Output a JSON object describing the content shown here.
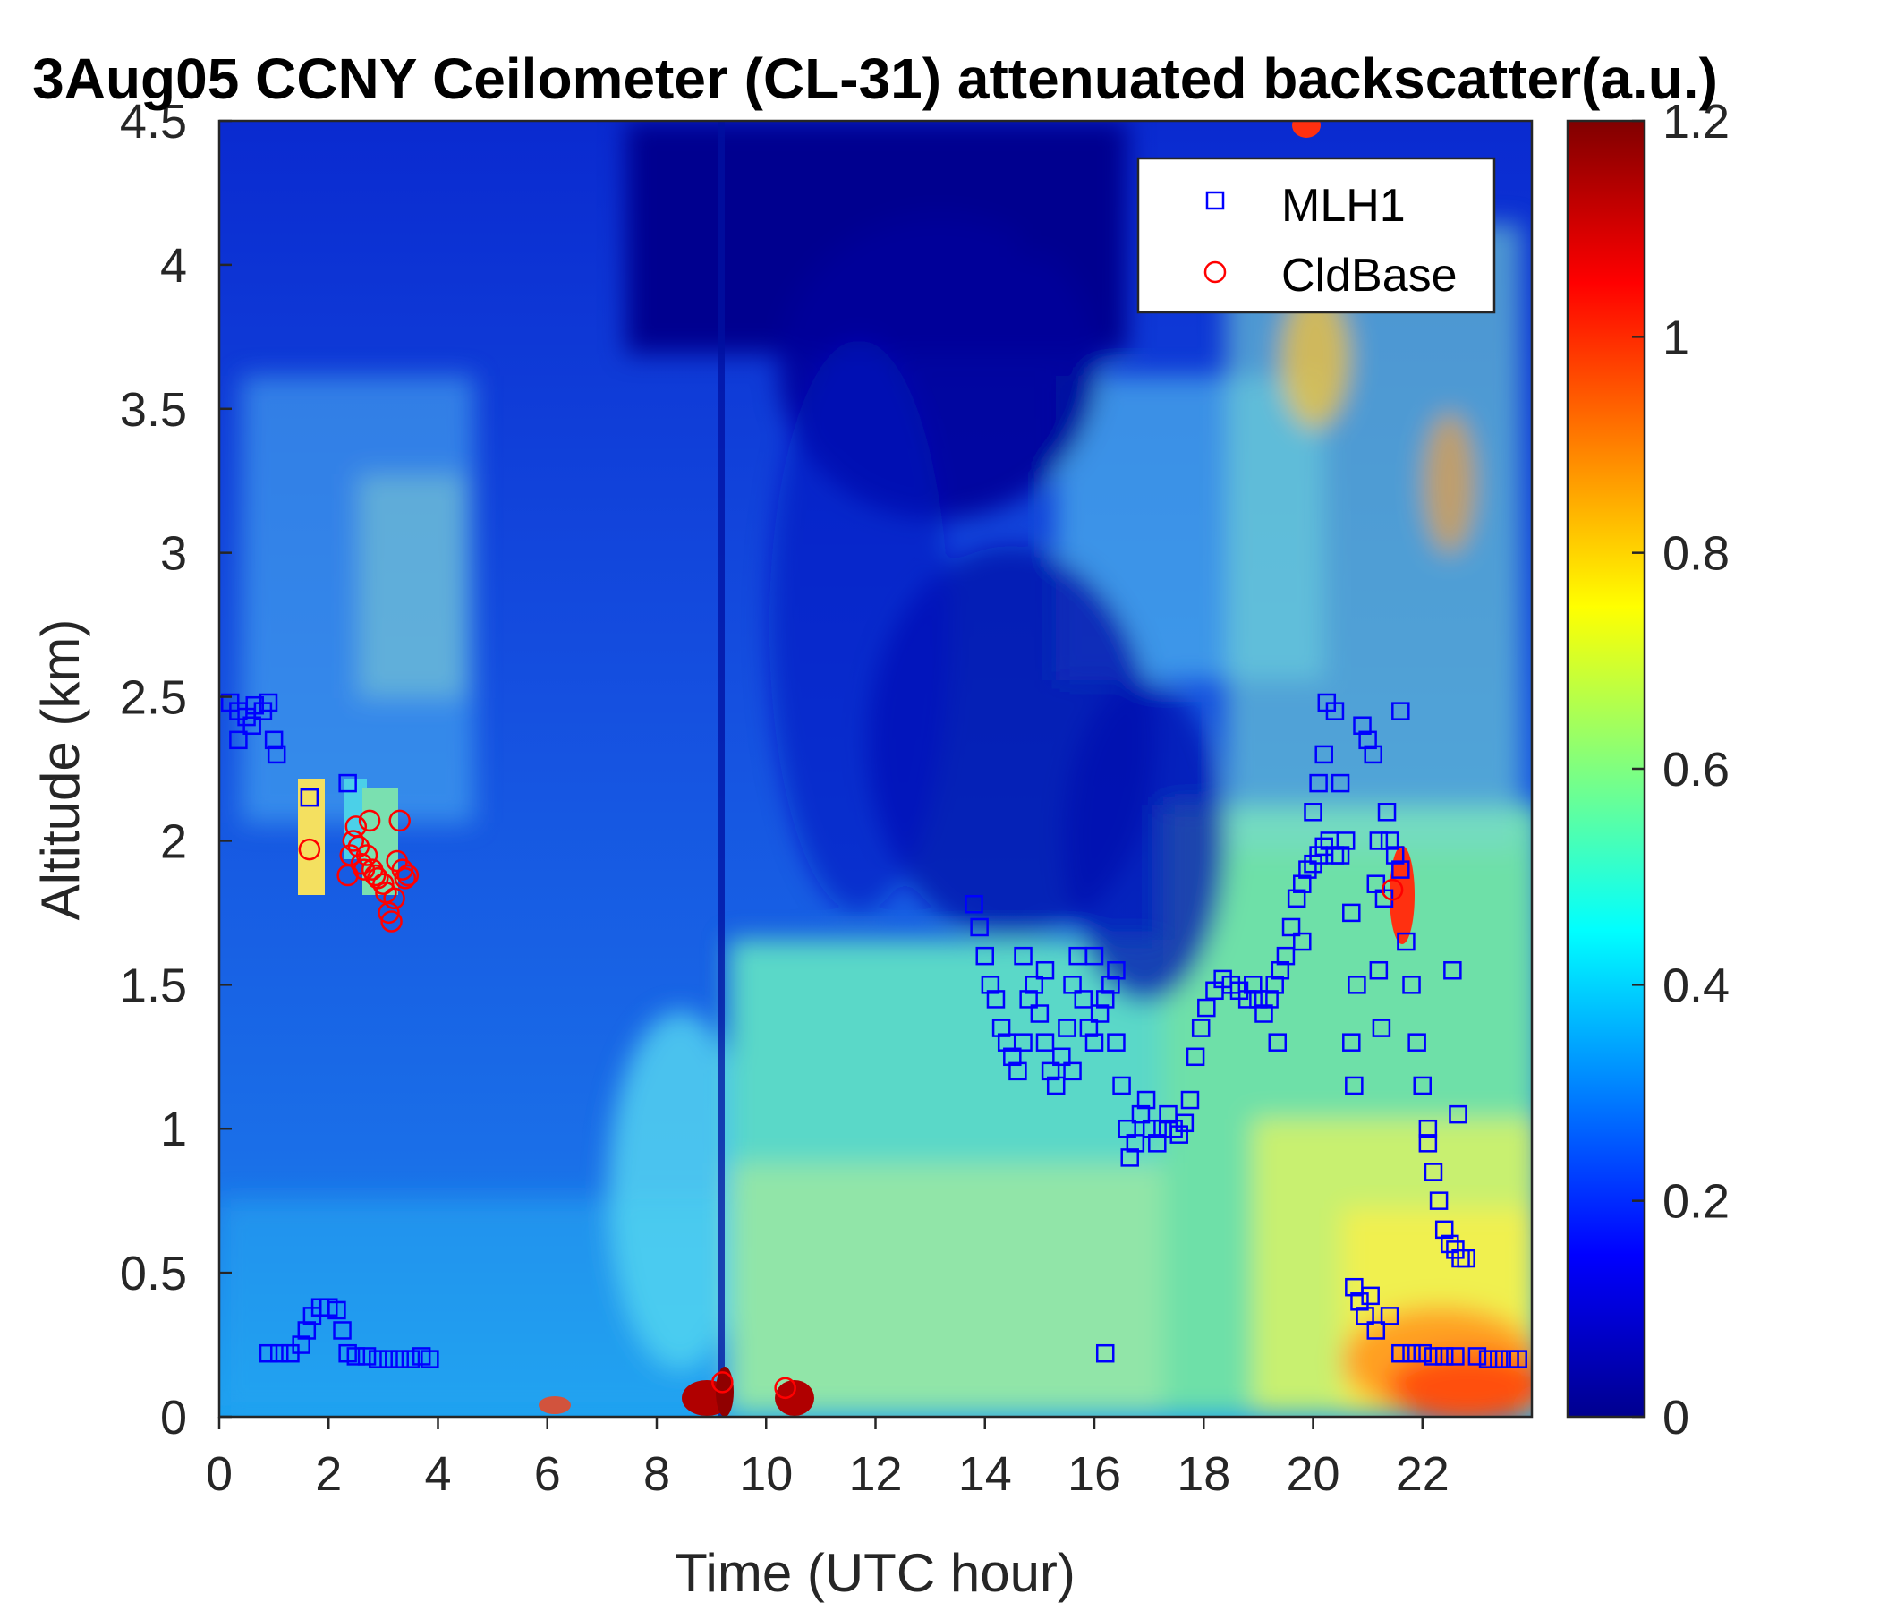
{
  "chart_data": {
    "type": "heatmap",
    "title": "3Aug05 CCNY Ceilometer (CL-31) attenuated backscatter(a.u.)",
    "xlabel": "Time (UTC hour)",
    "ylabel": "Altitude (km)",
    "xlim": [
      0,
      24
    ],
    "ylim": [
      0,
      4.5
    ],
    "x_ticks": [
      "0",
      "2",
      "4",
      "6",
      "8",
      "10",
      "12",
      "14",
      "16",
      "18",
      "20",
      "22"
    ],
    "y_ticks": [
      "0",
      "0.5",
      "1",
      "1.5",
      "2",
      "2.5",
      "3",
      "3.5",
      "4",
      "4.5"
    ],
    "colorbar": {
      "label": "",
      "colormap": "jet",
      "limits": [
        0,
        1.2
      ],
      "ticks": [
        "0",
        "0.2",
        "0.4",
        "0.6",
        "0.8",
        "1",
        "1.2"
      ]
    },
    "grid": false,
    "legend_position": "top-right",
    "series": [
      {
        "name": "MLH1",
        "marker": "square",
        "color": "#0000ff",
        "points": [
          [
            0.2,
            2.48
          ],
          [
            0.35,
            2.45
          ],
          [
            0.5,
            2.43
          ],
          [
            0.65,
            2.47
          ],
          [
            0.8,
            2.45
          ],
          [
            1.0,
            2.35
          ],
          [
            1.05,
            2.3
          ],
          [
            0.35,
            2.35
          ],
          [
            0.6,
            2.4
          ],
          [
            0.9,
            2.48
          ],
          [
            1.65,
            2.15
          ],
          [
            2.35,
            2.2
          ],
          [
            0.9,
            0.22
          ],
          [
            1.1,
            0.22
          ],
          [
            1.3,
            0.22
          ],
          [
            1.5,
            0.25
          ],
          [
            1.6,
            0.3
          ],
          [
            1.7,
            0.35
          ],
          [
            1.85,
            0.38
          ],
          [
            2.0,
            0.38
          ],
          [
            2.15,
            0.37
          ],
          [
            2.25,
            0.3
          ],
          [
            2.35,
            0.22
          ],
          [
            2.5,
            0.21
          ],
          [
            2.7,
            0.21
          ],
          [
            2.9,
            0.2
          ],
          [
            3.1,
            0.2
          ],
          [
            3.3,
            0.2
          ],
          [
            3.5,
            0.2
          ],
          [
            3.7,
            0.21
          ],
          [
            3.85,
            0.2
          ],
          [
            13.8,
            1.78
          ],
          [
            13.9,
            1.7
          ],
          [
            14.0,
            1.6
          ],
          [
            14.1,
            1.5
          ],
          [
            14.2,
            1.45
          ],
          [
            14.3,
            1.35
          ],
          [
            14.4,
            1.3
          ],
          [
            14.5,
            1.25
          ],
          [
            14.6,
            1.2
          ],
          [
            14.7,
            1.3
          ],
          [
            14.8,
            1.45
          ],
          [
            14.9,
            1.5
          ],
          [
            15.0,
            1.4
          ],
          [
            15.1,
            1.3
          ],
          [
            15.2,
            1.2
          ],
          [
            15.3,
            1.15
          ],
          [
            15.4,
            1.25
          ],
          [
            15.5,
            1.35
          ],
          [
            15.6,
            1.5
          ],
          [
            15.7,
            1.6
          ],
          [
            15.8,
            1.45
          ],
          [
            15.9,
            1.35
          ],
          [
            16.0,
            1.3
          ],
          [
            16.1,
            1.4
          ],
          [
            16.2,
            1.45
          ],
          [
            16.3,
            1.5
          ],
          [
            16.4,
            1.3
          ],
          [
            16.5,
            1.15
          ],
          [
            16.6,
            1.0
          ],
          [
            16.65,
            0.9
          ],
          [
            16.75,
            0.95
          ],
          [
            16.85,
            1.05
          ],
          [
            16.95,
            1.1
          ],
          [
            17.05,
            1.0
          ],
          [
            17.15,
            0.95
          ],
          [
            17.25,
            1.0
          ],
          [
            17.35,
            1.05
          ],
          [
            17.45,
            1.0
          ],
          [
            17.55,
            0.98
          ],
          [
            17.65,
            1.02
          ],
          [
            17.75,
            1.1
          ],
          [
            17.85,
            1.25
          ],
          [
            17.95,
            1.35
          ],
          [
            18.05,
            1.42
          ],
          [
            18.2,
            1.48
          ],
          [
            18.35,
            1.52
          ],
          [
            18.5,
            1.5
          ],
          [
            18.65,
            1.48
          ],
          [
            18.8,
            1.45
          ],
          [
            18.9,
            1.5
          ],
          [
            19.0,
            1.45
          ],
          [
            19.1,
            1.4
          ],
          [
            19.2,
            1.45
          ],
          [
            19.3,
            1.5
          ],
          [
            19.4,
            1.55
          ],
          [
            19.5,
            1.6
          ],
          [
            19.6,
            1.7
          ],
          [
            19.7,
            1.8
          ],
          [
            19.8,
            1.85
          ],
          [
            19.9,
            1.9
          ],
          [
            20.0,
            1.92
          ],
          [
            20.1,
            1.95
          ],
          [
            20.2,
            1.98
          ],
          [
            20.3,
            2.0
          ],
          [
            20.4,
            1.95
          ],
          [
            20.5,
            1.95
          ],
          [
            14.7,
            1.6
          ],
          [
            15.1,
            1.55
          ],
          [
            15.6,
            1.2
          ],
          [
            16.0,
            1.6
          ],
          [
            16.4,
            1.55
          ],
          [
            19.35,
            1.3
          ],
          [
            19.8,
            1.65
          ],
          [
            20.0,
            2.1
          ],
          [
            20.1,
            2.2
          ],
          [
            20.2,
            2.3
          ],
          [
            20.25,
            2.48
          ],
          [
            20.4,
            2.45
          ],
          [
            20.5,
            2.2
          ],
          [
            20.6,
            2.0
          ],
          [
            20.7,
            1.75
          ],
          [
            20.8,
            1.5
          ],
          [
            20.7,
            1.3
          ],
          [
            20.75,
            1.15
          ],
          [
            20.9,
            2.4
          ],
          [
            21.0,
            2.35
          ],
          [
            21.1,
            2.3
          ],
          [
            21.2,
            2.0
          ],
          [
            21.3,
            1.8
          ],
          [
            21.35,
            2.1
          ],
          [
            21.4,
            2.0
          ],
          [
            21.5,
            1.95
          ],
          [
            21.6,
            1.9
          ],
          [
            21.6,
            2.45
          ],
          [
            21.2,
            1.55
          ],
          [
            21.25,
            1.35
          ],
          [
            21.15,
            1.85
          ],
          [
            21.7,
            1.65
          ],
          [
            21.8,
            1.5
          ],
          [
            21.9,
            1.3
          ],
          [
            22.0,
            1.15
          ],
          [
            22.1,
            1.0
          ],
          [
            22.2,
            0.85
          ],
          [
            22.3,
            0.75
          ],
          [
            22.4,
            0.65
          ],
          [
            22.5,
            0.6
          ],
          [
            22.6,
            0.58
          ],
          [
            22.7,
            0.55
          ],
          [
            22.8,
            0.55
          ],
          [
            22.55,
            1.55
          ],
          [
            22.65,
            1.05
          ],
          [
            22.1,
            0.95
          ],
          [
            20.75,
            0.45
          ],
          [
            20.85,
            0.4
          ],
          [
            20.95,
            0.35
          ],
          [
            21.05,
            0.42
          ],
          [
            21.15,
            0.3
          ],
          [
            21.4,
            0.35
          ],
          [
            16.2,
            0.22
          ],
          [
            21.6,
            0.22
          ],
          [
            21.8,
            0.22
          ],
          [
            22.0,
            0.22
          ],
          [
            22.2,
            0.21
          ],
          [
            22.4,
            0.21
          ],
          [
            22.6,
            0.21
          ],
          [
            23.0,
            0.21
          ],
          [
            23.2,
            0.2
          ],
          [
            23.4,
            0.2
          ],
          [
            23.6,
            0.2
          ],
          [
            23.75,
            0.2
          ]
        ]
      },
      {
        "name": "CldBase",
        "marker": "circle",
        "color": "#ff0000",
        "points": [
          [
            1.65,
            1.97
          ],
          [
            2.35,
            1.88
          ],
          [
            2.4,
            1.95
          ],
          [
            2.45,
            2.0
          ],
          [
            2.5,
            2.05
          ],
          [
            2.55,
            1.98
          ],
          [
            2.6,
            1.92
          ],
          [
            2.65,
            1.9
          ],
          [
            2.7,
            1.95
          ],
          [
            2.75,
            2.07
          ],
          [
            2.8,
            1.9
          ],
          [
            2.85,
            1.88
          ],
          [
            2.9,
            1.87
          ],
          [
            3.0,
            1.85
          ],
          [
            3.05,
            1.82
          ],
          [
            3.1,
            1.75
          ],
          [
            3.15,
            1.72
          ],
          [
            3.2,
            1.8
          ],
          [
            3.25,
            1.93
          ],
          [
            3.3,
            2.07
          ],
          [
            3.35,
            1.9
          ],
          [
            3.4,
            1.87
          ],
          [
            3.45,
            1.88
          ],
          [
            9.2,
            0.12
          ],
          [
            10.35,
            0.1
          ],
          [
            21.45,
            1.83
          ]
        ]
      }
    ]
  }
}
